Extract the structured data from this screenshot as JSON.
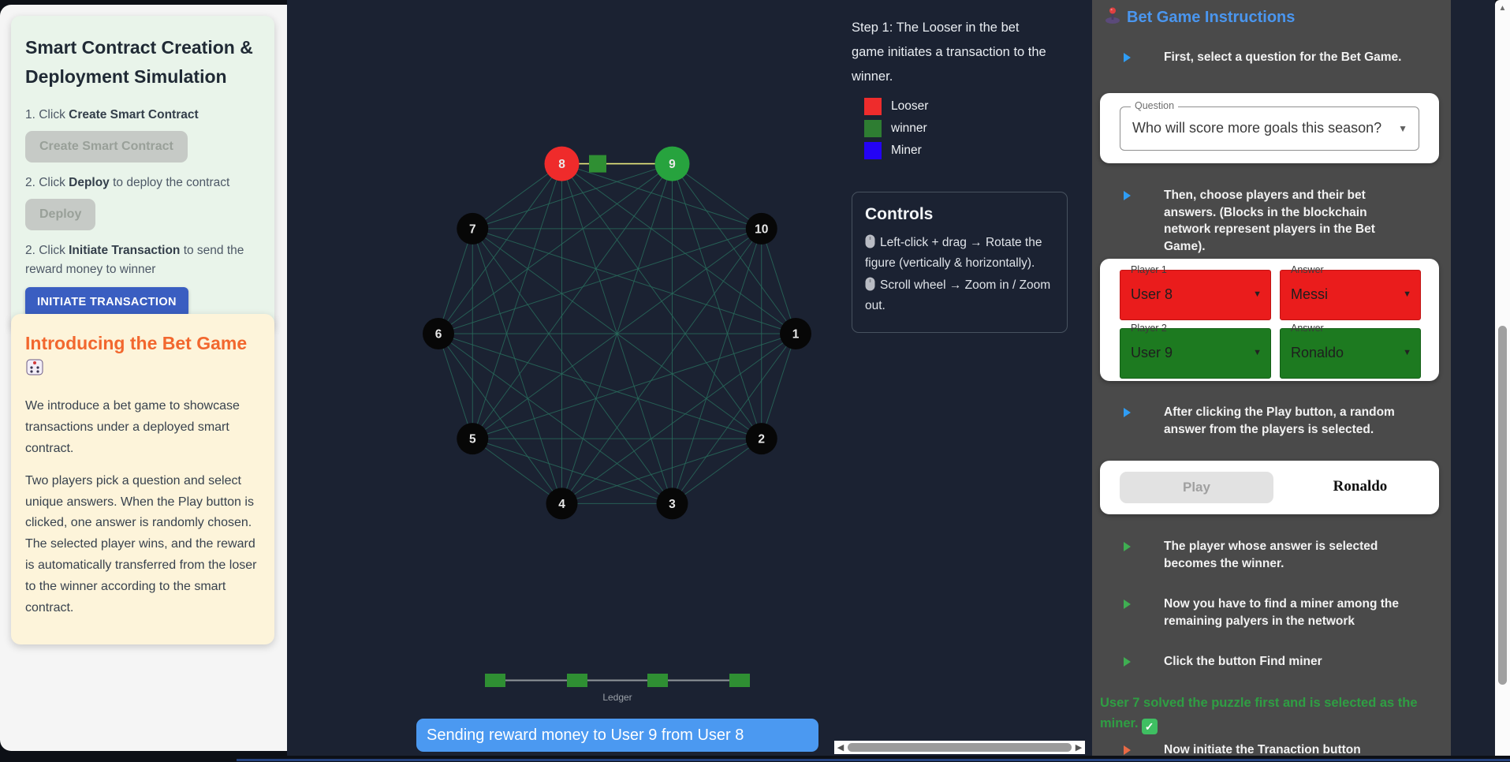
{
  "left_panel": {
    "card1": {
      "title": "Smart Contract Creation & Deployment Simulation",
      "steps": [
        {
          "prefix": "1. Click ",
          "bold": "Create Smart Contract",
          "suffix": ""
        },
        {
          "prefix": "2. Click ",
          "bold": "Deploy",
          "suffix": " to deploy the contract"
        },
        {
          "prefix": "2. Click ",
          "bold": "Initiate Transaction",
          "suffix": " to send the reward money to winner"
        }
      ],
      "create_button": "Create Smart Contract",
      "deploy_button": "Deploy",
      "initiate_button": "INITIATE TRANSACTION"
    },
    "card2": {
      "title": "Introducing the Bet Game",
      "icon": "dice-icon",
      "p1": "We introduce a bet game to showcase transactions under a deployed smart contract.",
      "p2": "Two players pick a question and select unique answers. When the Play button is clicked, one answer is randomly chosen. The selected player wins, and the reward is automatically transferred from the loser to the winner according to the smart contract."
    }
  },
  "graph": {
    "step_text": "Step 1: The Looser in the bet game initiates a transaction to the winner.",
    "legend": [
      {
        "label": "Looser",
        "color": "#ee2c2c"
      },
      {
        "label": "winner",
        "color": "#2e7d32"
      },
      {
        "label": "Miner",
        "color": "#2403f5"
      }
    ],
    "controls": {
      "title": "Controls",
      "line1": "Left-click + drag → Rotate the figure (vertically & horizontally).",
      "line2": "Scroll wheel → Zoom in / Zoom out.",
      "icon": "mouse-icon"
    },
    "nodes": [
      {
        "id": "1",
        "color": "#070707"
      },
      {
        "id": "2",
        "color": "#070707"
      },
      {
        "id": "3",
        "color": "#070707"
      },
      {
        "id": "4",
        "color": "#070707"
      },
      {
        "id": "5",
        "color": "#070707"
      },
      {
        "id": "6",
        "color": "#070707"
      },
      {
        "id": "7",
        "color": "#070707"
      },
      {
        "id": "8",
        "color": "#ef2b2b"
      },
      {
        "id": "9",
        "color": "#27a33e"
      },
      {
        "id": "10",
        "color": "#070707"
      }
    ],
    "transaction_edge": {
      "from": "8",
      "to": "9",
      "color": "#e9e97e",
      "block_color": "#2f8f33"
    },
    "edge_color": "#28695a",
    "ledger": {
      "blocks": 4,
      "label": "Ledger",
      "block_color": "#2f8f33",
      "line_color": "#909599"
    },
    "status": "Sending reward money to User 9 from User 8"
  },
  "right_panel": {
    "header": "Bet Game Instructions",
    "header_icon": "joystick-icon",
    "items": [
      {
        "color": "blue",
        "text": "First, select a question for the Bet Game."
      },
      {
        "color": "blue",
        "text": "Then, choose players and their bet answers. (Blocks in the blockchain network represent players in the Bet Game)."
      },
      {
        "color": "blue",
        "text": "After clicking the Play button, a random answer from the players is selected."
      },
      {
        "color": "green",
        "text": "The player whose answer is selected becomes the winner."
      },
      {
        "color": "green",
        "text": "Now you have to find a miner among the remaining palyers in the network"
      },
      {
        "color": "green",
        "text": "Click the button Find miner"
      },
      {
        "color": "orange",
        "text": "Now initiate the Tranaction button"
      }
    ],
    "question": {
      "label": "Question",
      "value": "Who will score more goals this season?"
    },
    "players": [
      {
        "label": "Player 1",
        "value": "User 8",
        "answer_label": "Answer",
        "answer": "Messi",
        "color": "#ea1c1c"
      },
      {
        "label": "Player 2",
        "value": "User 9",
        "answer_label": "Answer",
        "answer": "Ronaldo",
        "color": "#1d7a20"
      }
    ],
    "play": {
      "button": "Play",
      "result": "Ronaldo"
    },
    "miner_message": "User 7 solved the puzzle first and is selected as the miner.",
    "miner_check": "check-icon"
  }
}
